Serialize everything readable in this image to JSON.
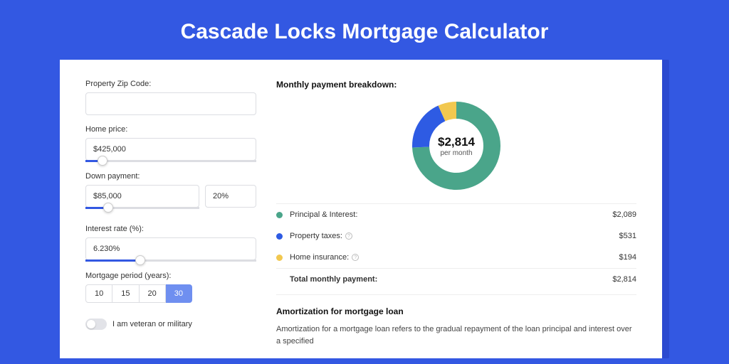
{
  "page": {
    "title": "Cascade Locks Mortgage Calculator",
    "bg_color": "#3358e2",
    "card_shadow_color": "#2b4ad0",
    "card_bg": "#ffffff"
  },
  "form": {
    "zip": {
      "label": "Property Zip Code:",
      "value": ""
    },
    "home_price": {
      "label": "Home price:",
      "value": "$425,000",
      "slider_pct": 10
    },
    "down_payment": {
      "label": "Down payment:",
      "amount": "$85,000",
      "pct": "20%",
      "slider_pct": 20
    },
    "interest": {
      "label": "Interest rate (%):",
      "value": "6.230%",
      "slider_pct": 32
    },
    "period": {
      "label": "Mortgage period (years):",
      "options": [
        "10",
        "15",
        "20",
        "30"
      ],
      "active_index": 3
    },
    "veteran": {
      "label": "I am veteran or military",
      "on": false
    }
  },
  "breakdown": {
    "title": "Monthly payment breakdown:",
    "center_amount": "$2,814",
    "center_sub": "per month",
    "donut": {
      "segments": [
        {
          "key": "pi",
          "color": "#4aa58a",
          "value": 2089
        },
        {
          "key": "tax",
          "color": "#2e5be3",
          "value": 531
        },
        {
          "key": "ins",
          "color": "#f2c84f",
          "value": 194
        }
      ],
      "radius": 50,
      "stroke": 24
    },
    "rows": [
      {
        "dot": "#4aa58a",
        "label": "Principal & Interest:",
        "info": false,
        "value": "$2,089"
      },
      {
        "dot": "#2e5be3",
        "label": "Property taxes:",
        "info": true,
        "value": "$531"
      },
      {
        "dot": "#f2c84f",
        "label": "Home insurance:",
        "info": true,
        "value": "$194"
      }
    ],
    "total": {
      "label": "Total monthly payment:",
      "value": "$2,814"
    }
  },
  "amortization": {
    "title": "Amortization for mortgage loan",
    "text": "Amortization for a mortgage loan refers to the gradual repayment of the loan principal and interest over a specified"
  }
}
